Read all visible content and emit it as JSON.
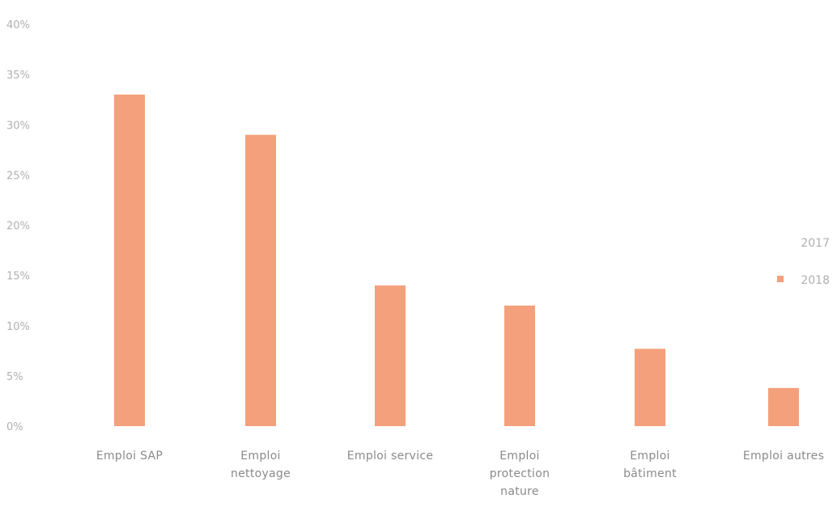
{
  "chart_data": {
    "type": "bar",
    "categories": [
      [
        "Emploi SAP"
      ],
      [
        "Emploi",
        "nettoyage"
      ],
      [
        "Emploi service"
      ],
      [
        "Emploi",
        "protection",
        "nature"
      ],
      [
        "Emploi",
        "bâtiment"
      ],
      [
        "Emploi autres"
      ]
    ],
    "series": [
      {
        "name": "2017",
        "values": [
          0,
          0,
          0,
          0,
          0,
          0
        ],
        "color": "#ffffff"
      },
      {
        "name": "2018",
        "values": [
          33,
          29,
          14,
          12,
          7.7,
          3.8
        ],
        "color": "#f4a07c"
      }
    ],
    "ylim": [
      0,
      40
    ],
    "y_ticks": [
      "0%",
      "5%",
      "10%",
      "15%",
      "20%",
      "25%",
      "30%",
      "35%",
      "40%"
    ],
    "legend_position": "right",
    "grid": false,
    "title": "",
    "xlabel": "",
    "ylabel": ""
  }
}
